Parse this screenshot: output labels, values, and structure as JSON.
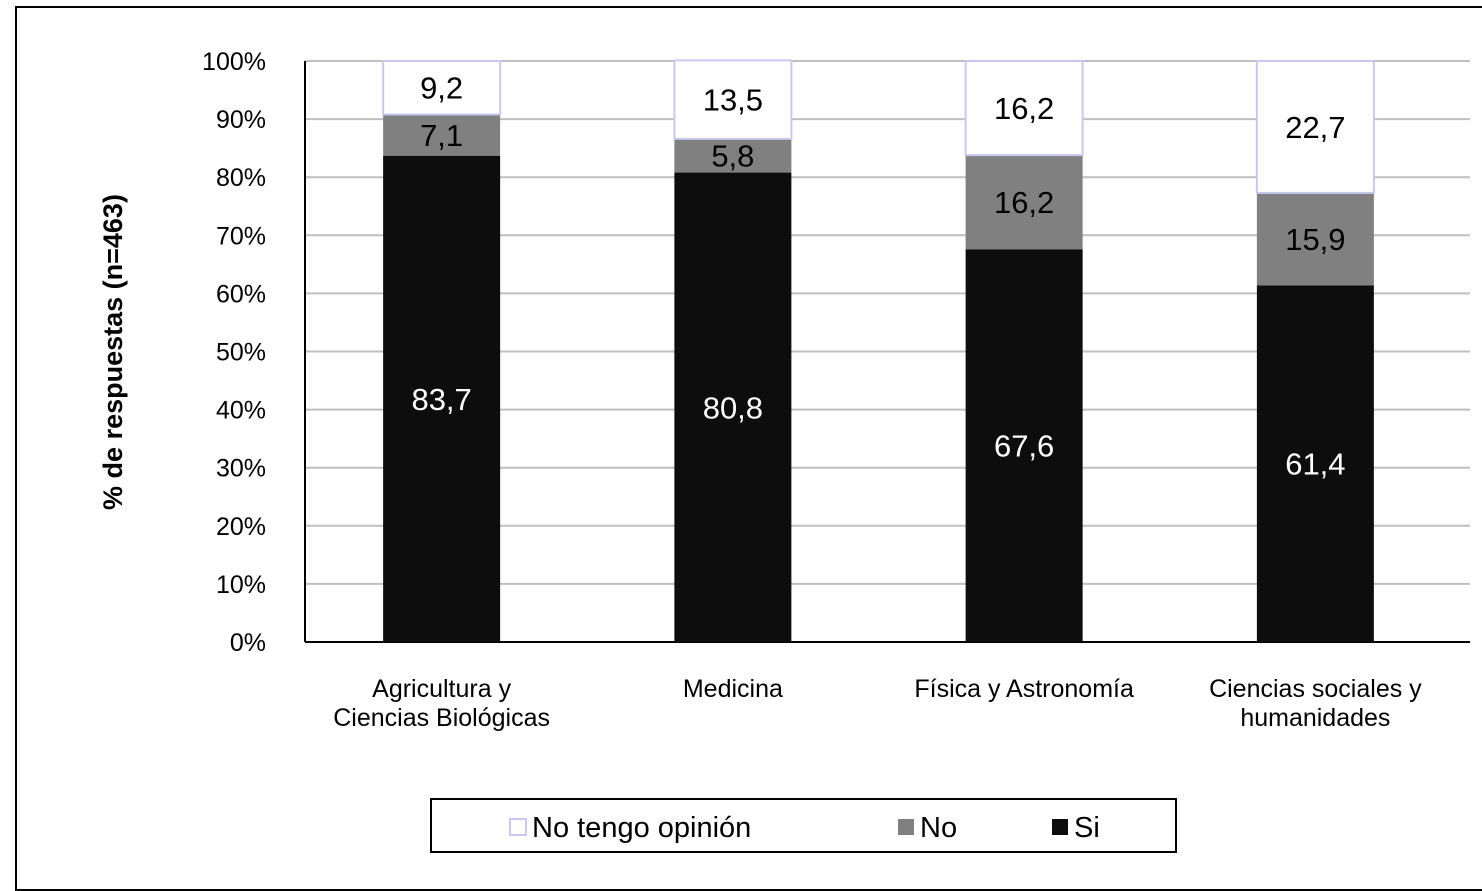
{
  "chart_data": {
    "type": "bar",
    "stacked": true,
    "percent_stacked": true,
    "title": "",
    "xlabel": "",
    "ylabel": "% de respuestas  (n=463)",
    "ylim": [
      0,
      100
    ],
    "y_ticks": [
      "0%",
      "10%",
      "20%",
      "30%",
      "40%",
      "50%",
      "60%",
      "70%",
      "80%",
      "90%",
      "100%"
    ],
    "grid": true,
    "legend_position": "bottom",
    "categories": [
      [
        "Agricultura y",
        "Ciencias Biológicas"
      ],
      [
        "Medicina"
      ],
      [
        "Física y Astronomía"
      ],
      [
        "Ciencias sociales y",
        "humanidades"
      ]
    ],
    "series": [
      {
        "name": "Si",
        "color": "#0d0d0d",
        "label_color": "#ffffff",
        "values": [
          83.7,
          80.8,
          67.6,
          61.4
        ],
        "labels": [
          "83,7",
          "80,8",
          "67,6",
          "61,4"
        ]
      },
      {
        "name": "No",
        "color": "#808080",
        "label_color": "#000000",
        "values": [
          7.1,
          5.8,
          16.2,
          15.9
        ],
        "labels": [
          "7,1",
          "5,8",
          "16,2",
          "15,9"
        ]
      },
      {
        "name": "No tengo opinión",
        "color": "#ffffff",
        "border_color": "#c8c8f0",
        "label_color": "#000000",
        "values": [
          9.2,
          13.5,
          16.2,
          22.7
        ],
        "labels": [
          "9,2",
          "13,5",
          "16,2",
          "22,7"
        ]
      }
    ],
    "legend_order": [
      "No tengo opinión",
      "No",
      "Si"
    ]
  }
}
